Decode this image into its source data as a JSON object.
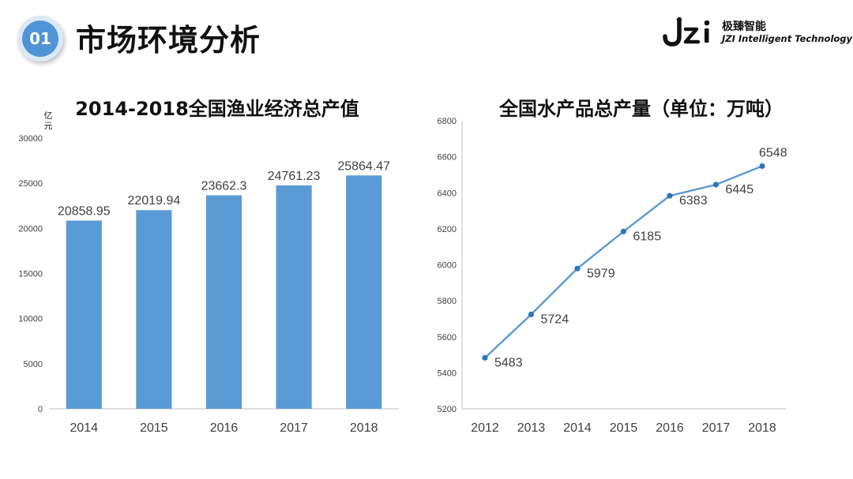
{
  "header": {
    "badge_number": "01",
    "title": "市场环境分析",
    "logo_cn": "极臻智能",
    "logo_en": "JZI Intelligent Technology"
  },
  "colors": {
    "bar": "#5b9bd5",
    "line": "#5b9bd5",
    "marker": "#2e75b6",
    "axis": "#a6a6a6",
    "text": "#404040",
    "badge": "#4f94d6"
  },
  "chart_data": [
    {
      "type": "bar",
      "title": "2014-2018全国渔业经济总产值",
      "ylabel": "亿元",
      "categories": [
        "2014",
        "2015",
        "2016",
        "2017",
        "2018"
      ],
      "values": [
        20858.95,
        22019.94,
        23662.3,
        24761.23,
        25864.47
      ],
      "value_labels": [
        "20858.95",
        "22019.94",
        "23662.3",
        "24761.23",
        "25864.47"
      ],
      "ylim": [
        0,
        30000
      ],
      "yticks": [
        "0",
        "5000",
        "10000",
        "15000",
        "20000",
        "25000",
        "30000"
      ],
      "grid": false
    },
    {
      "type": "line",
      "title": "全国水产品总产量（单位：万吨）",
      "categories": [
        "2012",
        "2013",
        "2014",
        "2015",
        "2016",
        "2017",
        "2018"
      ],
      "values": [
        5483,
        5724,
        5979,
        6185,
        6383,
        6445,
        6548
      ],
      "value_labels": [
        "5483",
        "5724",
        "5979",
        "6185",
        "6383",
        "6445",
        "6548"
      ],
      "ylim": [
        5200,
        6800
      ],
      "yticks": [
        "5200",
        "5400",
        "5600",
        "5800",
        "6000",
        "6200",
        "6400",
        "6600",
        "6800"
      ],
      "grid": false
    }
  ]
}
